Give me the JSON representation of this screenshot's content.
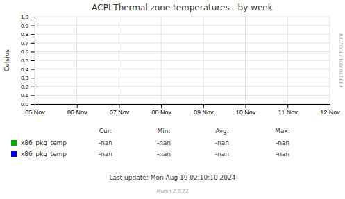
{
  "chart_data": {
    "type": "line",
    "title": "ACPI Thermal zone temperatures - by week",
    "y_label": "Celsius",
    "categories": [
      "05 Nov",
      "06 Nov",
      "07 Nov",
      "08 Nov",
      "09 Nov",
      "10 Nov",
      "11 Nov",
      "12 Nov"
    ],
    "series": [
      {
        "name": "x86_pkg_temp",
        "color": "#00aa00",
        "values": [
          null,
          null,
          null,
          null,
          null,
          null,
          null,
          null
        ],
        "stats": [
          "-nan",
          "-nan",
          "-nan",
          "-nan"
        ]
      },
      {
        "name": "x86_pkg_temp",
        "color": "#0000dd",
        "values": [
          null,
          null,
          null,
          null,
          null,
          null,
          null,
          null
        ],
        "stats": [
          "-nan",
          "-nan",
          "-nan",
          "-nan"
        ]
      }
    ],
    "stat_headers": [
      "Cur:",
      "Min:",
      "Avg:",
      "Max:"
    ],
    "annotations": [
      "Last update: Mon Aug 19 02:10:10 2024",
      "Munin 2.0.73",
      "RRDTOOL / TOBI OETIKER"
    ],
    "ylim": [
      0.0,
      1.0
    ],
    "yticks": [
      {
        "value": 0.0,
        "label": "0.0"
      },
      0.1,
      0.2,
      0.3,
      0.4,
      0.5,
      0.6,
      0.7,
      0.8,
      0.9,
      {
        "value": 1.0,
        "label": "1.0"
      }
    ],
    "grid": true
  }
}
